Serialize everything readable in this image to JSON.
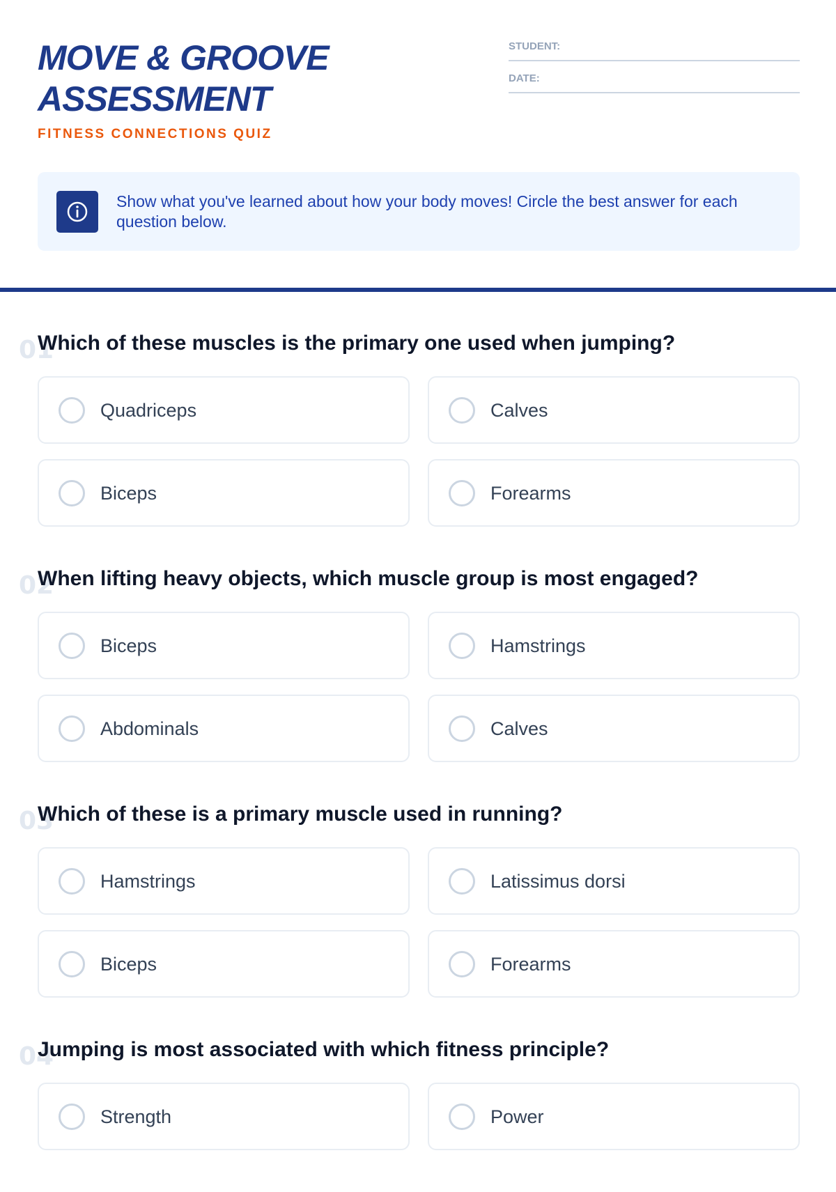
{
  "header": {
    "title": "MOVE & GROOVE ASSESSMENT",
    "subtitle": "FITNESS CONNECTIONS QUIZ",
    "fields": [
      "STUDENT:",
      "DATE:"
    ]
  },
  "instructions": "Show what you've learned about how your body moves! Circle the best answer for each question below.",
  "questions": [
    {
      "number": "01",
      "text": "Which of these muscles is the primary one used when jumping?",
      "options": [
        "Quadriceps",
        "Calves",
        "Biceps",
        "Forearms"
      ]
    },
    {
      "number": "02",
      "text": "When lifting heavy objects, which muscle group is most engaged?",
      "options": [
        "Biceps",
        "Hamstrings",
        "Abdominals",
        "Calves"
      ]
    },
    {
      "number": "03",
      "text": "Which of these is a primary muscle used in running?",
      "options": [
        "Hamstrings",
        "Latissimus dorsi",
        "Biceps",
        "Forearms"
      ]
    },
    {
      "number": "04",
      "text": "Jumping is most associated with which fitness principle?",
      "options": [
        "Strength",
        "Power"
      ]
    }
  ]
}
